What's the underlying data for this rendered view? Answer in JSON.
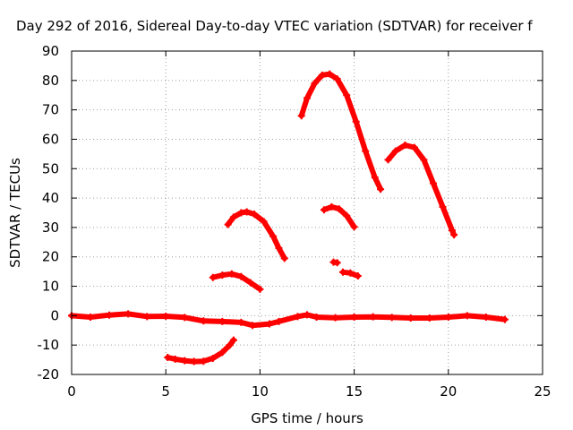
{
  "chart_data": {
    "type": "line",
    "title": "Day 292 of 2016, Sidereal Day-to-day VTEC variation (SDTVAR) for receiver f",
    "xlabel": "GPS time / hours",
    "ylabel": "SDTVAR / TECUs",
    "xlim": [
      0,
      25
    ],
    "ylim": [
      -20,
      90
    ],
    "xticks": [
      0,
      5,
      10,
      15,
      20,
      25
    ],
    "yticks": [
      -20,
      -10,
      0,
      10,
      20,
      30,
      40,
      50,
      60,
      70,
      80,
      90
    ],
    "grid": true,
    "series_color": "#ff0000",
    "series": [
      {
        "points": [
          [
            0.0,
            0.0
          ],
          [
            1.0,
            -0.5
          ],
          [
            2.0,
            0.2
          ],
          [
            3.0,
            0.6
          ],
          [
            4.0,
            -0.3
          ],
          [
            5.0,
            -0.2
          ],
          [
            6.0,
            -0.6
          ],
          [
            7.0,
            -1.8
          ],
          [
            8.0,
            -2.0
          ],
          [
            9.0,
            -2.3
          ],
          [
            9.6,
            -3.3
          ],
          [
            10.5,
            -2.8
          ],
          [
            11.0,
            -2.0
          ],
          [
            12.0,
            -0.3
          ],
          [
            12.5,
            0.3
          ],
          [
            13.0,
            -0.5
          ],
          [
            14.0,
            -0.7
          ],
          [
            15.0,
            -0.5
          ],
          [
            16.0,
            -0.4
          ],
          [
            17.0,
            -0.6
          ],
          [
            18.0,
            -0.8
          ],
          [
            19.0,
            -0.8
          ],
          [
            20.0,
            -0.5
          ],
          [
            21.0,
            0.0
          ],
          [
            22.0,
            -0.5
          ],
          [
            23.0,
            -1.3
          ]
        ]
      },
      {
        "points": [
          [
            5.1,
            -14.2
          ],
          [
            5.5,
            -14.8
          ],
          [
            6.0,
            -15.3
          ],
          [
            6.5,
            -15.6
          ],
          [
            7.0,
            -15.5
          ],
          [
            7.5,
            -14.5
          ],
          [
            8.0,
            -12.5
          ],
          [
            8.4,
            -10.0
          ],
          [
            8.6,
            -8.3
          ]
        ]
      },
      {
        "points": [
          [
            7.5,
            13.0
          ],
          [
            8.0,
            13.8
          ],
          [
            8.5,
            14.2
          ],
          [
            9.0,
            13.3
          ],
          [
            9.5,
            11.2
          ],
          [
            10.0,
            9.0
          ]
        ]
      },
      {
        "points": [
          [
            8.3,
            31.0
          ],
          [
            8.6,
            33.5
          ],
          [
            9.0,
            35.0
          ],
          [
            9.3,
            35.3
          ],
          [
            9.7,
            34.5
          ],
          [
            10.2,
            32.0
          ],
          [
            10.7,
            27.0
          ],
          [
            11.0,
            23.0
          ],
          [
            11.3,
            19.5
          ]
        ]
      },
      {
        "points": [
          [
            12.2,
            68.0
          ],
          [
            12.5,
            74.0
          ],
          [
            12.9,
            79.0
          ],
          [
            13.3,
            81.8
          ],
          [
            13.7,
            82.2
          ],
          [
            14.1,
            80.5
          ],
          [
            14.6,
            75.0
          ],
          [
            15.1,
            66.0
          ],
          [
            15.6,
            56.0
          ],
          [
            16.1,
            47.0
          ],
          [
            16.4,
            43.0
          ]
        ]
      },
      {
        "points": [
          [
            13.4,
            36.0
          ],
          [
            13.8,
            37.0
          ],
          [
            14.2,
            36.3
          ],
          [
            14.6,
            34.0
          ],
          [
            15.0,
            30.2
          ]
        ]
      },
      {
        "points": [
          [
            13.9,
            18.2
          ],
          [
            14.1,
            18.0
          ]
        ]
      },
      {
        "points": [
          [
            14.4,
            14.8
          ],
          [
            14.8,
            14.5
          ],
          [
            15.2,
            13.5
          ]
        ]
      },
      {
        "points": [
          [
            16.8,
            53.0
          ],
          [
            17.2,
            56.0
          ],
          [
            17.7,
            58.0
          ],
          [
            18.2,
            57.2
          ],
          [
            18.7,
            53.0
          ],
          [
            19.2,
            45.0
          ],
          [
            19.7,
            37.0
          ],
          [
            20.2,
            29.0
          ],
          [
            20.3,
            27.5
          ]
        ]
      }
    ]
  }
}
